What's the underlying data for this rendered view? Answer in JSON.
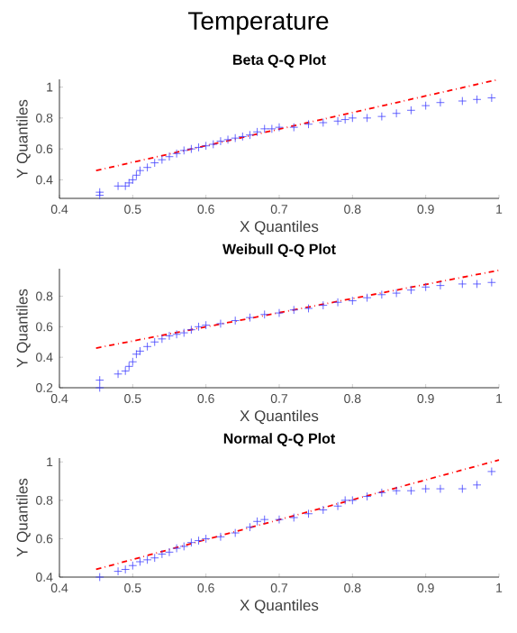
{
  "chart_data": [
    {
      "type": "scatter",
      "title": "Temperature",
      "subtitle": "Beta Q-Q Plot",
      "xlabel": "X Quantiles",
      "ylabel": "Y Quantiles",
      "xlim": [
        0.4,
        1
      ],
      "ylim": [
        0.28,
        1.05
      ],
      "xticks": [
        0.4,
        0.5,
        0.6,
        0.7,
        0.8,
        0.9,
        1
      ],
      "yticks": [
        0.4,
        0.6,
        0.8,
        1
      ],
      "marker": "cross",
      "series": [
        {
          "color": "#4040ff",
          "x": [
            0.455,
            0.455,
            0.48,
            0.49,
            0.495,
            0.5,
            0.505,
            0.51,
            0.52,
            0.53,
            0.54,
            0.55,
            0.56,
            0.57,
            0.58,
            0.59,
            0.6,
            0.61,
            0.62,
            0.63,
            0.64,
            0.65,
            0.66,
            0.67,
            0.68,
            0.69,
            0.7,
            0.72,
            0.74,
            0.76,
            0.78,
            0.79,
            0.8,
            0.82,
            0.84,
            0.86,
            0.88,
            0.9,
            0.92,
            0.95,
            0.97,
            0.99
          ],
          "values": [
            0.3,
            0.32,
            0.36,
            0.36,
            0.38,
            0.4,
            0.43,
            0.46,
            0.48,
            0.51,
            0.53,
            0.55,
            0.57,
            0.59,
            0.6,
            0.61,
            0.62,
            0.63,
            0.65,
            0.66,
            0.67,
            0.68,
            0.69,
            0.71,
            0.73,
            0.73,
            0.74,
            0.74,
            0.76,
            0.77,
            0.78,
            0.79,
            0.8,
            0.8,
            0.81,
            0.83,
            0.85,
            0.88,
            0.9,
            0.91,
            0.92,
            0.93
          ]
        },
        {
          "type": "line",
          "marker": "none",
          "color": "#ff0000",
          "line_style": "dashed",
          "x": [
            0.45,
            1
          ],
          "values": [
            0.46,
            1.05
          ]
        }
      ]
    },
    {
      "type": "scatter",
      "title": "Weibull Q-Q Plot",
      "xlabel": "X Quantiles",
      "ylabel": "Y Quantiles",
      "xlim": [
        0.4,
        1
      ],
      "ylim": [
        0.2,
        0.98
      ],
      "xticks": [
        0.4,
        0.5,
        0.6,
        0.7,
        0.8,
        0.9,
        1
      ],
      "yticks": [
        0.2,
        0.4,
        0.6,
        0.8
      ],
      "marker": "cross",
      "series": [
        {
          "color": "#4040ff",
          "x": [
            0.455,
            0.455,
            0.48,
            0.49,
            0.495,
            0.5,
            0.505,
            0.51,
            0.52,
            0.53,
            0.54,
            0.55,
            0.56,
            0.57,
            0.58,
            0.59,
            0.6,
            0.62,
            0.64,
            0.66,
            0.68,
            0.7,
            0.72,
            0.74,
            0.76,
            0.78,
            0.8,
            0.82,
            0.84,
            0.86,
            0.88,
            0.9,
            0.92,
            0.95,
            0.97,
            0.99
          ],
          "values": [
            0.2,
            0.25,
            0.29,
            0.31,
            0.34,
            0.37,
            0.42,
            0.44,
            0.47,
            0.5,
            0.52,
            0.54,
            0.55,
            0.56,
            0.58,
            0.6,
            0.61,
            0.62,
            0.64,
            0.66,
            0.68,
            0.69,
            0.71,
            0.72,
            0.74,
            0.76,
            0.77,
            0.79,
            0.81,
            0.82,
            0.84,
            0.86,
            0.87,
            0.88,
            0.88,
            0.89
          ]
        },
        {
          "type": "line",
          "marker": "none",
          "color": "#ff0000",
          "line_style": "dashed",
          "x": [
            0.45,
            1
          ],
          "values": [
            0.46,
            0.97
          ]
        }
      ]
    },
    {
      "type": "scatter",
      "title": "Normal Q-Q Plot",
      "xlabel": "X Quantiles",
      "ylabel": "Y Quantiles",
      "xlim": [
        0.4,
        1
      ],
      "ylim": [
        0.4,
        1.02
      ],
      "xticks": [
        0.4,
        0.5,
        0.6,
        0.7,
        0.8,
        0.9,
        1
      ],
      "yticks": [
        0.4,
        0.6,
        0.8,
        1
      ],
      "marker": "cross",
      "series": [
        {
          "color": "#4040ff",
          "x": [
            0.455,
            0.48,
            0.49,
            0.5,
            0.51,
            0.52,
            0.53,
            0.54,
            0.55,
            0.56,
            0.57,
            0.58,
            0.59,
            0.6,
            0.62,
            0.64,
            0.66,
            0.67,
            0.68,
            0.7,
            0.72,
            0.74,
            0.76,
            0.78,
            0.79,
            0.8,
            0.82,
            0.84,
            0.86,
            0.88,
            0.9,
            0.92,
            0.95,
            0.97,
            0.99
          ],
          "values": [
            0.4,
            0.43,
            0.44,
            0.46,
            0.48,
            0.49,
            0.5,
            0.52,
            0.53,
            0.55,
            0.56,
            0.58,
            0.59,
            0.6,
            0.61,
            0.63,
            0.66,
            0.69,
            0.7,
            0.7,
            0.71,
            0.73,
            0.75,
            0.77,
            0.8,
            0.8,
            0.82,
            0.84,
            0.85,
            0.85,
            0.86,
            0.86,
            0.86,
            0.88,
            0.95
          ]
        },
        {
          "type": "line",
          "marker": "none",
          "color": "#ff0000",
          "line_style": "dashed",
          "x": [
            0.45,
            1
          ],
          "values": [
            0.44,
            1.01
          ]
        }
      ]
    }
  ]
}
